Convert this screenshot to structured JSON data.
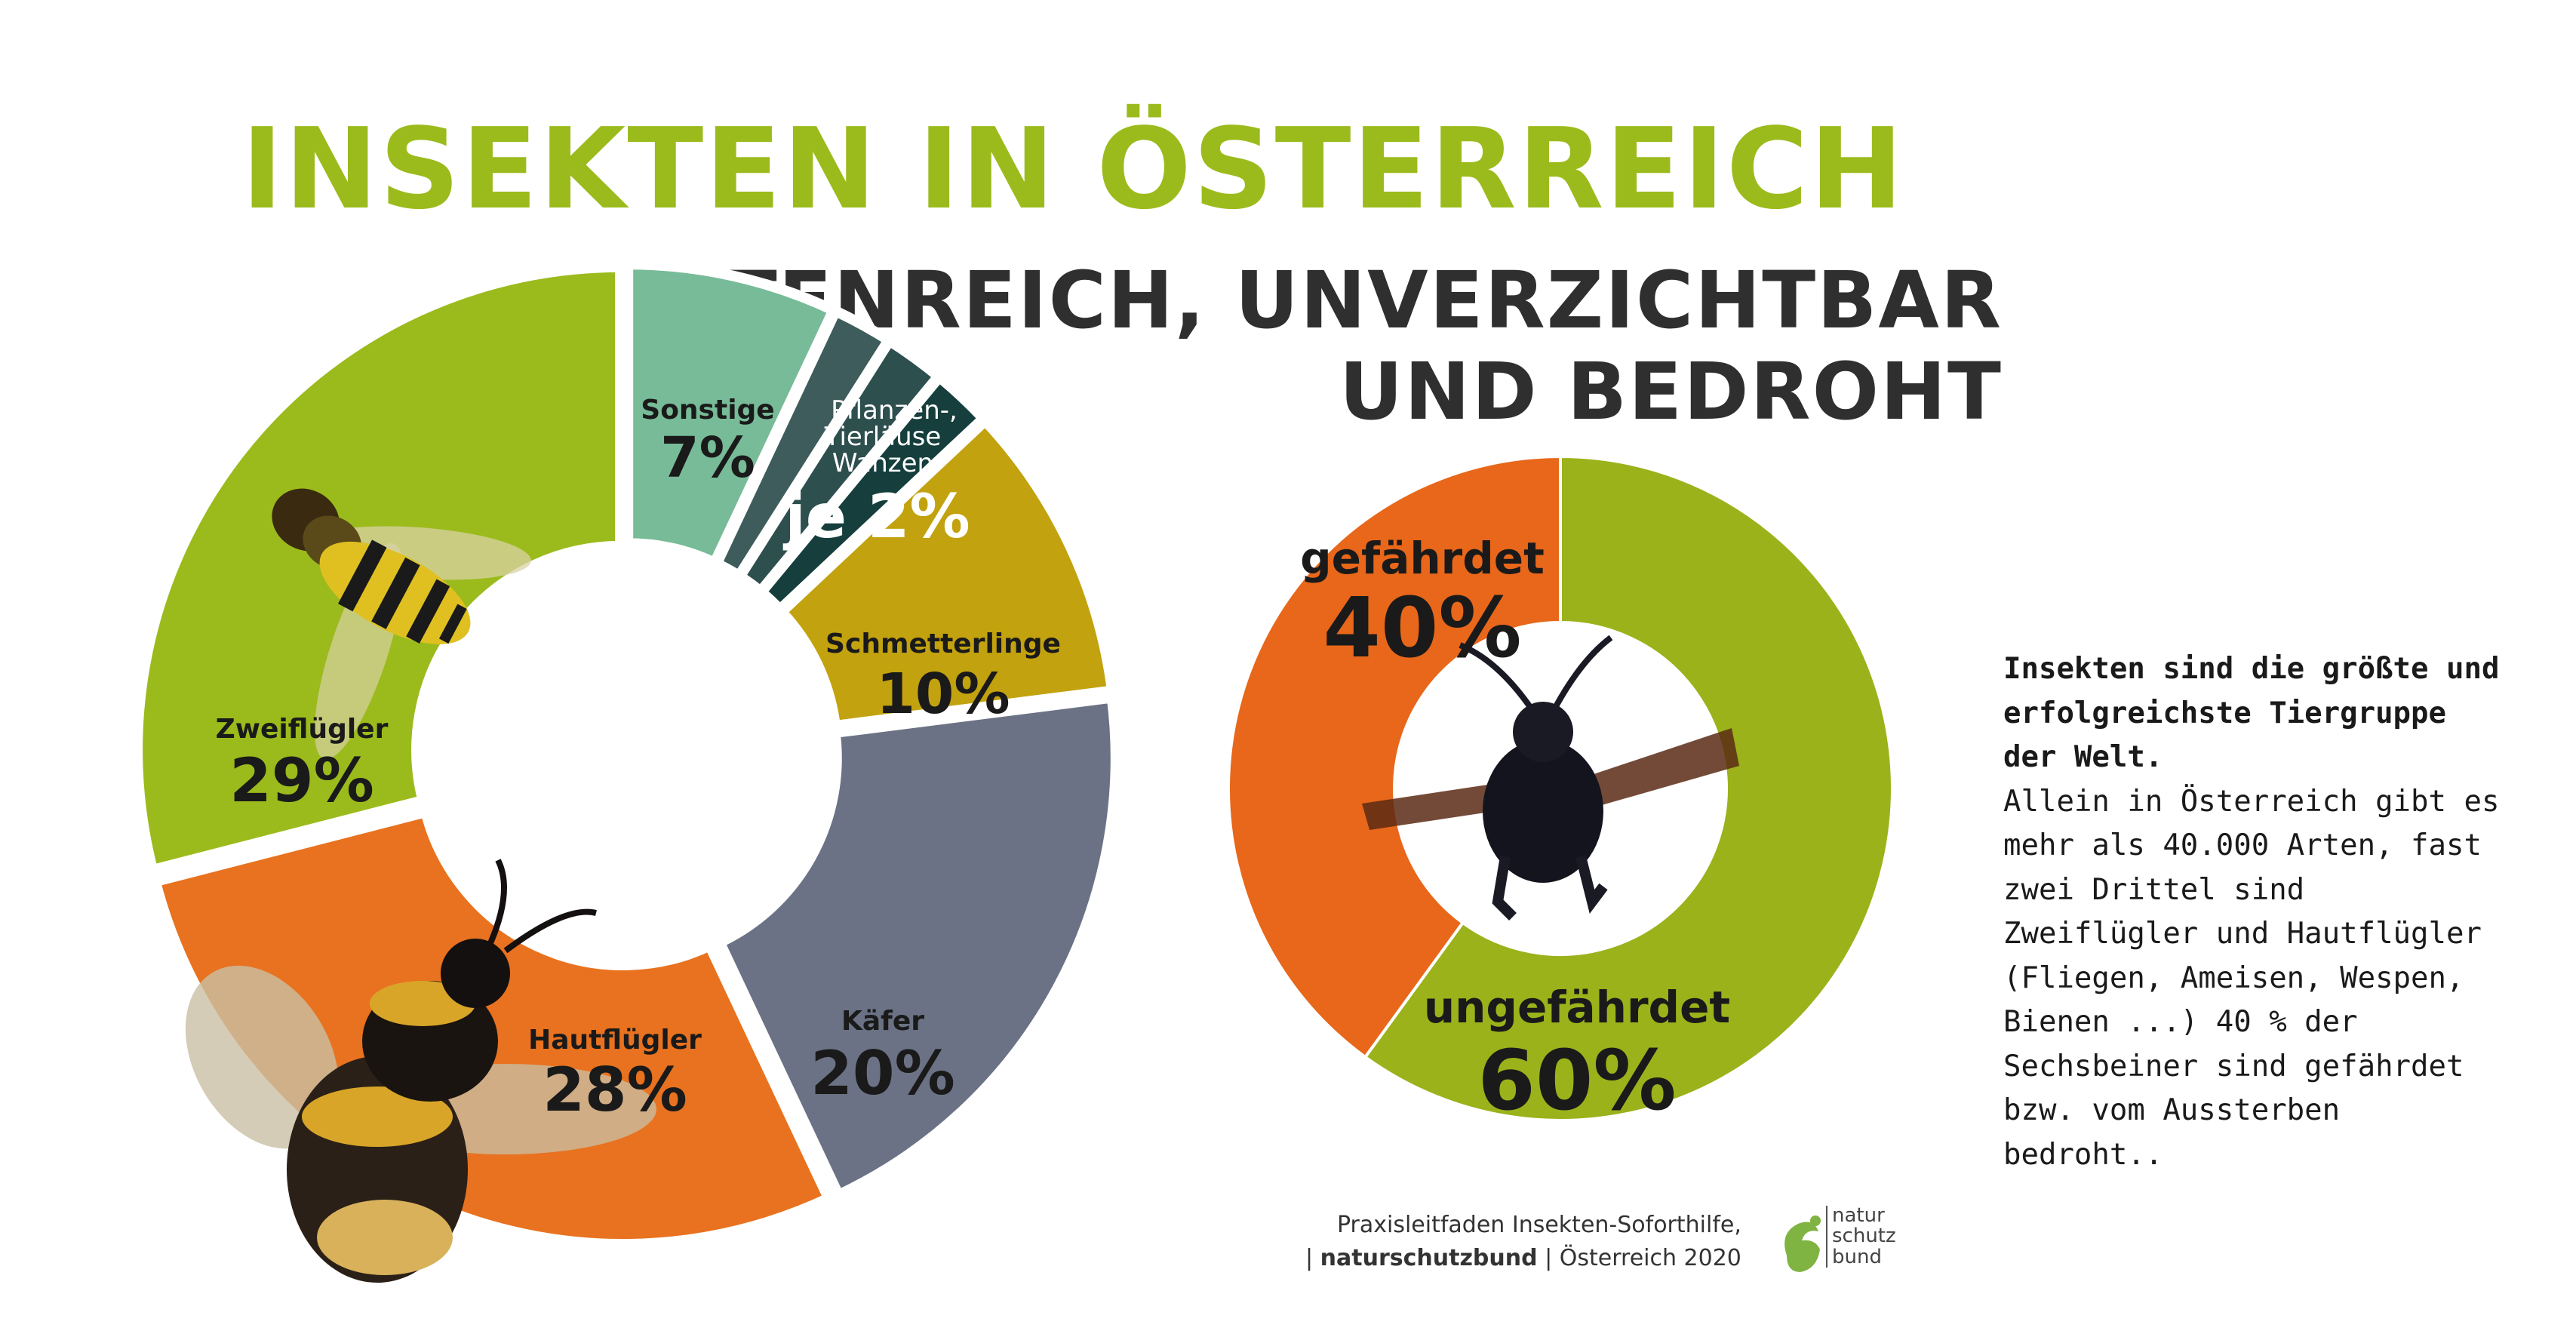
{
  "title": "INSEKTEN IN ÖSTERREICH",
  "subtitle": [
    "ARTENREICH, UNVERZICHTBAR",
    "UND BEDROHT"
  ],
  "chart_data": [
    {
      "type": "pie",
      "variant": "donut",
      "slices": [
        {
          "label": "Sonstige",
          "value_label": "7%",
          "value": 7,
          "color": "#77bb98"
        },
        {
          "label": "Pflanzen-",
          "value": 2,
          "color": "#3d5c5b"
        },
        {
          "label": "Tierläuse",
          "value": 2,
          "color": "#2d4f4e"
        },
        {
          "label": "Wanzen",
          "value": 2,
          "color": "#153e3c"
        },
        {
          "label": "Schmetterlinge",
          "value_label": "10%",
          "value": 10,
          "color": "#c2a20e"
        },
        {
          "label": "Käfer",
          "value_label": "20%",
          "value": 20,
          "color": "#6b7285"
        },
        {
          "label": "Hautflügler",
          "value_label": "28%",
          "value": 28,
          "color": "#e8721f"
        },
        {
          "label": "Zweiflügler",
          "value_label": "29%",
          "value": 29,
          "color": "#9bbb1c"
        }
      ],
      "group_label": {
        "lines": [
          "Pflanzen-,",
          "Tierläuse",
          "Wanzen"
        ],
        "value_label": "je 2%"
      }
    },
    {
      "type": "pie",
      "variant": "donut",
      "slices": [
        {
          "label": "ungefährdet",
          "value_label": "60%",
          "value": 60,
          "color": "#9bb21b"
        },
        {
          "label": "gefährdet",
          "value_label": "40%",
          "value": 40,
          "color": "#e8671a"
        }
      ]
    }
  ],
  "info": {
    "lead": "Insekten sind die größte und erfolgreichste Tiergruppe der Welt.",
    "body": "Allein in Österreich gibt es mehr als 40.000 Arten, fast zwei Drittel sind Zweiflügler und Hautflügler (Fliegen, Ameisen, Wespen, Bienen ...) 40 % der Sechsbeiner sind gefährdet bzw. vom Aussterben bedroht.."
  },
  "credit": {
    "line1": "Praxisleitfaden Insekten-Soforthilfe,",
    "line2_prefix": "| ",
    "line2_bold": "naturschutzbund",
    "line2_suffix": " | Österreich 2020"
  },
  "logo": [
    "natur",
    "schutz",
    "bund"
  ],
  "icons": [
    "hoverfly-icon",
    "bumblebee-icon",
    "carpenter-bee-icon",
    "naturschutzbund-logo"
  ]
}
